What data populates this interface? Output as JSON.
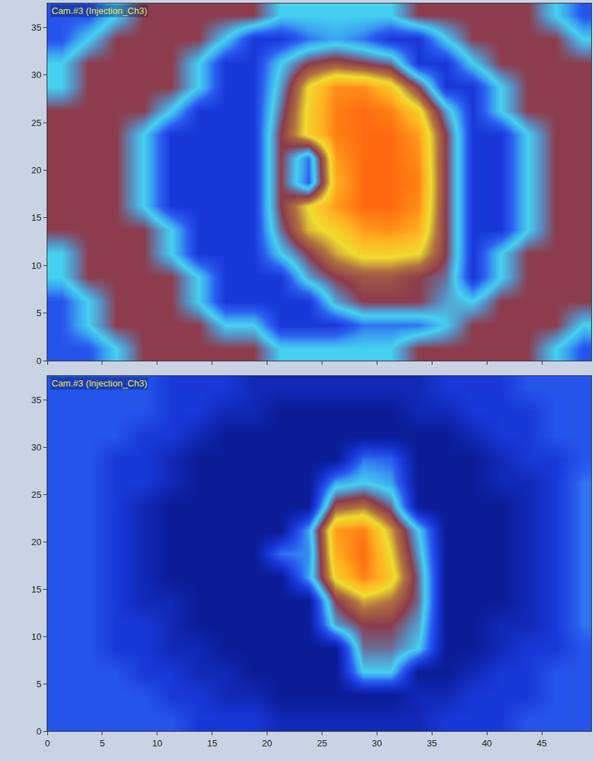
{
  "chart_data": [
    {
      "type": "heatmap",
      "title": "Cam.#3 (Injection_Ch3)",
      "x": [
        1.25,
        3.75,
        6.25,
        8.75,
        11.25,
        13.75,
        16.25,
        18.75,
        21.25,
        23.75,
        26.25,
        28.75,
        31.25,
        33.75,
        36.25,
        38.75,
        41.25,
        43.75,
        46.25,
        48.75
      ],
      "y": [
        1.25,
        3.75,
        6.25,
        8.75,
        11.25,
        13.75,
        16.25,
        18.75,
        21.25,
        23.75,
        26.25,
        28.75,
        31.25,
        33.75,
        36.25
      ],
      "z": [
        [
          26,
          26,
          40,
          55,
          55,
          55,
          55,
          55,
          40,
          40,
          40,
          40,
          40,
          55,
          55,
          55,
          55,
          55,
          40,
          26
        ],
        [
          26,
          40,
          55,
          55,
          55,
          55,
          40,
          40,
          20,
          20,
          20,
          30,
          30,
          30,
          40,
          55,
          55,
          55,
          55,
          40
        ],
        [
          26,
          40,
          55,
          55,
          55,
          40,
          20,
          20,
          20,
          20,
          45,
          55,
          55,
          55,
          45,
          40,
          55,
          55,
          55,
          55
        ],
        [
          40,
          55,
          55,
          55,
          55,
          40,
          20,
          20,
          20,
          45,
          55,
          60,
          60,
          55,
          50,
          20,
          40,
          55,
          55,
          55
        ],
        [
          40,
          55,
          55,
          55,
          40,
          20,
          20,
          20,
          40,
          55,
          70,
          78,
          78,
          75,
          55,
          20,
          40,
          55,
          55,
          55
        ],
        [
          55,
          55,
          55,
          55,
          40,
          20,
          20,
          20,
          50,
          72,
          78,
          88,
          90,
          85,
          55,
          20,
          20,
          40,
          55,
          55
        ],
        [
          55,
          55,
          55,
          40,
          20,
          20,
          20,
          20,
          55,
          75,
          88,
          95,
          95,
          90,
          55,
          20,
          20,
          40,
          55,
          55
        ],
        [
          55,
          55,
          55,
          40,
          20,
          20,
          20,
          20,
          55,
          28,
          85,
          95,
          95,
          92,
          55,
          20,
          20,
          40,
          55,
          55
        ],
        [
          55,
          55,
          55,
          40,
          20,
          20,
          20,
          20,
          55,
          30,
          88,
          95,
          95,
          90,
          55,
          20,
          20,
          40,
          55,
          55
        ],
        [
          55,
          55,
          55,
          40,
          20,
          20,
          20,
          20,
          55,
          78,
          92,
          95,
          95,
          88,
          55,
          20,
          20,
          40,
          55,
          55
        ],
        [
          55,
          55,
          55,
          55,
          40,
          20,
          20,
          20,
          50,
          78,
          92,
          95,
          92,
          78,
          45,
          20,
          40,
          55,
          55,
          55
        ],
        [
          40,
          55,
          55,
          55,
          55,
          40,
          20,
          20,
          45,
          75,
          90,
          90,
          80,
          55,
          20,
          20,
          40,
          55,
          55,
          55
        ],
        [
          40,
          55,
          55,
          55,
          55,
          40,
          20,
          20,
          40,
          55,
          60,
          55,
          50,
          20,
          20,
          40,
          55,
          55,
          55,
          55
        ],
        [
          26,
          40,
          55,
          55,
          55,
          55,
          40,
          20,
          20,
          30,
          35,
          30,
          20,
          20,
          40,
          55,
          55,
          55,
          55,
          40
        ],
        [
          26,
          26,
          40,
          55,
          55,
          55,
          55,
          55,
          40,
          40,
          40,
          40,
          40,
          55,
          55,
          55,
          55,
          55,
          40,
          26
        ]
      ],
      "zlim": [
        0,
        100
      ],
      "xlim": [
        0,
        49.5
      ],
      "ylim": [
        0,
        37.5
      ],
      "xticks": [
        0,
        5,
        10,
        15,
        20,
        25,
        30,
        35,
        40,
        45
      ],
      "yticks": [
        0,
        5,
        10,
        15,
        20,
        25,
        30,
        35
      ],
      "tick_labels": "y"
    },
    {
      "type": "heatmap",
      "title": "Cam.#3 (Injection_Ch3)",
      "x": [
        1.25,
        3.75,
        6.25,
        8.75,
        11.25,
        13.75,
        16.25,
        18.75,
        21.25,
        23.75,
        26.25,
        28.75,
        31.25,
        33.75,
        36.25,
        38.75,
        41.25,
        43.75,
        46.25,
        48.75
      ],
      "y": [
        1.25,
        3.75,
        6.25,
        8.75,
        11.25,
        13.75,
        16.25,
        18.75,
        21.25,
        23.75,
        26.25,
        28.75,
        31.25,
        33.75,
        36.25
      ],
      "z": [
        [
          26,
          26,
          26,
          26,
          26,
          20,
          20,
          20,
          14,
          14,
          14,
          14,
          14,
          14,
          20,
          20,
          20,
          26,
          26,
          26
        ],
        [
          26,
          26,
          26,
          26,
          20,
          20,
          14,
          14,
          8,
          8,
          8,
          8,
          8,
          14,
          14,
          20,
          20,
          20,
          26,
          26
        ],
        [
          26,
          26,
          26,
          20,
          20,
          14,
          14,
          8,
          8,
          8,
          8,
          40,
          40,
          8,
          8,
          14,
          20,
          20,
          26,
          26
        ],
        [
          26,
          26,
          20,
          20,
          14,
          14,
          8,
          8,
          8,
          8,
          8,
          50,
          50,
          40,
          8,
          8,
          14,
          20,
          20,
          26
        ],
        [
          26,
          26,
          20,
          20,
          14,
          8,
          8,
          8,
          8,
          8,
          45,
          55,
          55,
          45,
          8,
          8,
          14,
          14,
          20,
          30
        ],
        [
          26,
          26,
          20,
          14,
          14,
          8,
          8,
          8,
          8,
          8,
          55,
          70,
          65,
          50,
          8,
          8,
          8,
          14,
          20,
          30
        ],
        [
          26,
          26,
          20,
          14,
          8,
          8,
          8,
          8,
          8,
          35,
          78,
          92,
          80,
          50,
          8,
          8,
          8,
          14,
          20,
          30
        ],
        [
          26,
          26,
          20,
          14,
          8,
          8,
          8,
          8,
          30,
          32,
          85,
          95,
          75,
          45,
          8,
          8,
          8,
          14,
          20,
          30
        ],
        [
          26,
          26,
          20,
          14,
          8,
          8,
          8,
          8,
          8,
          35,
          88,
          92,
          70,
          40,
          8,
          8,
          8,
          14,
          20,
          30
        ],
        [
          26,
          26,
          20,
          14,
          8,
          8,
          8,
          8,
          8,
          8,
          60,
          65,
          50,
          8,
          8,
          8,
          8,
          14,
          20,
          30
        ],
        [
          26,
          26,
          20,
          20,
          14,
          8,
          8,
          8,
          8,
          8,
          35,
          40,
          35,
          8,
          8,
          8,
          14,
          14,
          20,
          30
        ],
        [
          26,
          26,
          20,
          20,
          14,
          8,
          8,
          8,
          8,
          8,
          8,
          30,
          28,
          8,
          8,
          8,
          14,
          20,
          20,
          26
        ],
        [
          26,
          26,
          26,
          20,
          20,
          14,
          8,
          8,
          8,
          8,
          8,
          8,
          8,
          8,
          8,
          14,
          20,
          20,
          26,
          26
        ],
        [
          26,
          26,
          26,
          26,
          20,
          20,
          14,
          14,
          8,
          8,
          8,
          8,
          8,
          14,
          14,
          20,
          20,
          20,
          26,
          26
        ],
        [
          26,
          26,
          26,
          26,
          20,
          20,
          20,
          14,
          14,
          14,
          14,
          14,
          14,
          14,
          20,
          20,
          20,
          26,
          26,
          26
        ]
      ],
      "zlim": [
        0,
        100
      ],
      "xlim": [
        0,
        49.5
      ],
      "ylim": [
        0,
        37.5
      ],
      "xticks": [
        0,
        5,
        10,
        15,
        20,
        25,
        30,
        35,
        40,
        45
      ],
      "yticks": [
        0,
        5,
        10,
        15,
        20,
        25,
        30,
        35
      ]
    }
  ]
}
